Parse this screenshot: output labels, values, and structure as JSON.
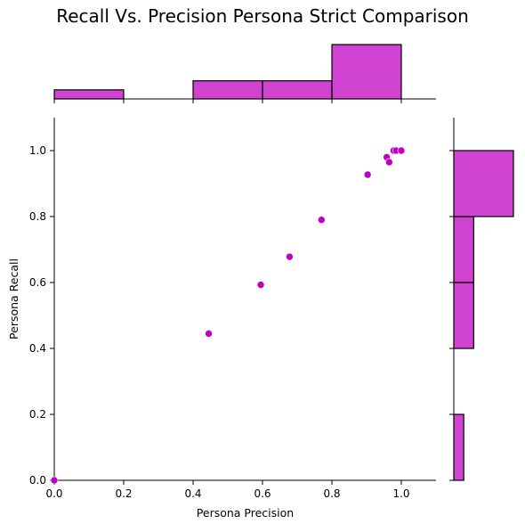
{
  "chart_data": {
    "type": "scatter",
    "title": "Recall Vs. Precision Persona Strict Comparison",
    "xlabel": "Persona Precision",
    "ylabel": "Persona Recall",
    "xlim": [
      0.0,
      1.1
    ],
    "ylim": [
      0.0,
      1.1
    ],
    "x_ticks": [
      "0.0",
      "0.2",
      "0.4",
      "0.6",
      "0.8",
      "1.0"
    ],
    "y_ticks": [
      "0.0",
      "0.2",
      "0.4",
      "0.6",
      "0.8",
      "1.0"
    ],
    "points": [
      {
        "x": 0.0,
        "y": 0.0
      },
      {
        "x": 0.445,
        "y": 0.445
      },
      {
        "x": 0.595,
        "y": 0.593
      },
      {
        "x": 0.678,
        "y": 0.678
      },
      {
        "x": 0.77,
        "y": 0.79
      },
      {
        "x": 0.903,
        "y": 0.927
      },
      {
        "x": 0.958,
        "y": 0.98
      },
      {
        "x": 0.965,
        "y": 0.965
      },
      {
        "x": 0.978,
        "y": 1.0
      },
      {
        "x": 0.985,
        "y": 1.0
      },
      {
        "x": 1.0,
        "y": 1.0
      }
    ],
    "marginal_x_histogram": {
      "bins": [
        [
          0.0,
          0.2
        ],
        [
          0.2,
          0.4
        ],
        [
          0.4,
          0.6
        ],
        [
          0.6,
          0.8
        ],
        [
          0.8,
          1.0
        ]
      ],
      "counts": [
        1,
        0,
        2,
        2,
        6
      ]
    },
    "marginal_y_histogram": {
      "bins": [
        [
          0.0,
          0.2
        ],
        [
          0.2,
          0.4
        ],
        [
          0.4,
          0.6
        ],
        [
          0.6,
          0.8
        ],
        [
          0.8,
          1.0
        ]
      ],
      "counts": [
        1,
        0,
        2,
        2,
        6
      ]
    },
    "colors": {
      "points": "#bf00bf",
      "hist_fill": "#d042d0",
      "hist_edge": "#000000"
    },
    "grid": false
  }
}
